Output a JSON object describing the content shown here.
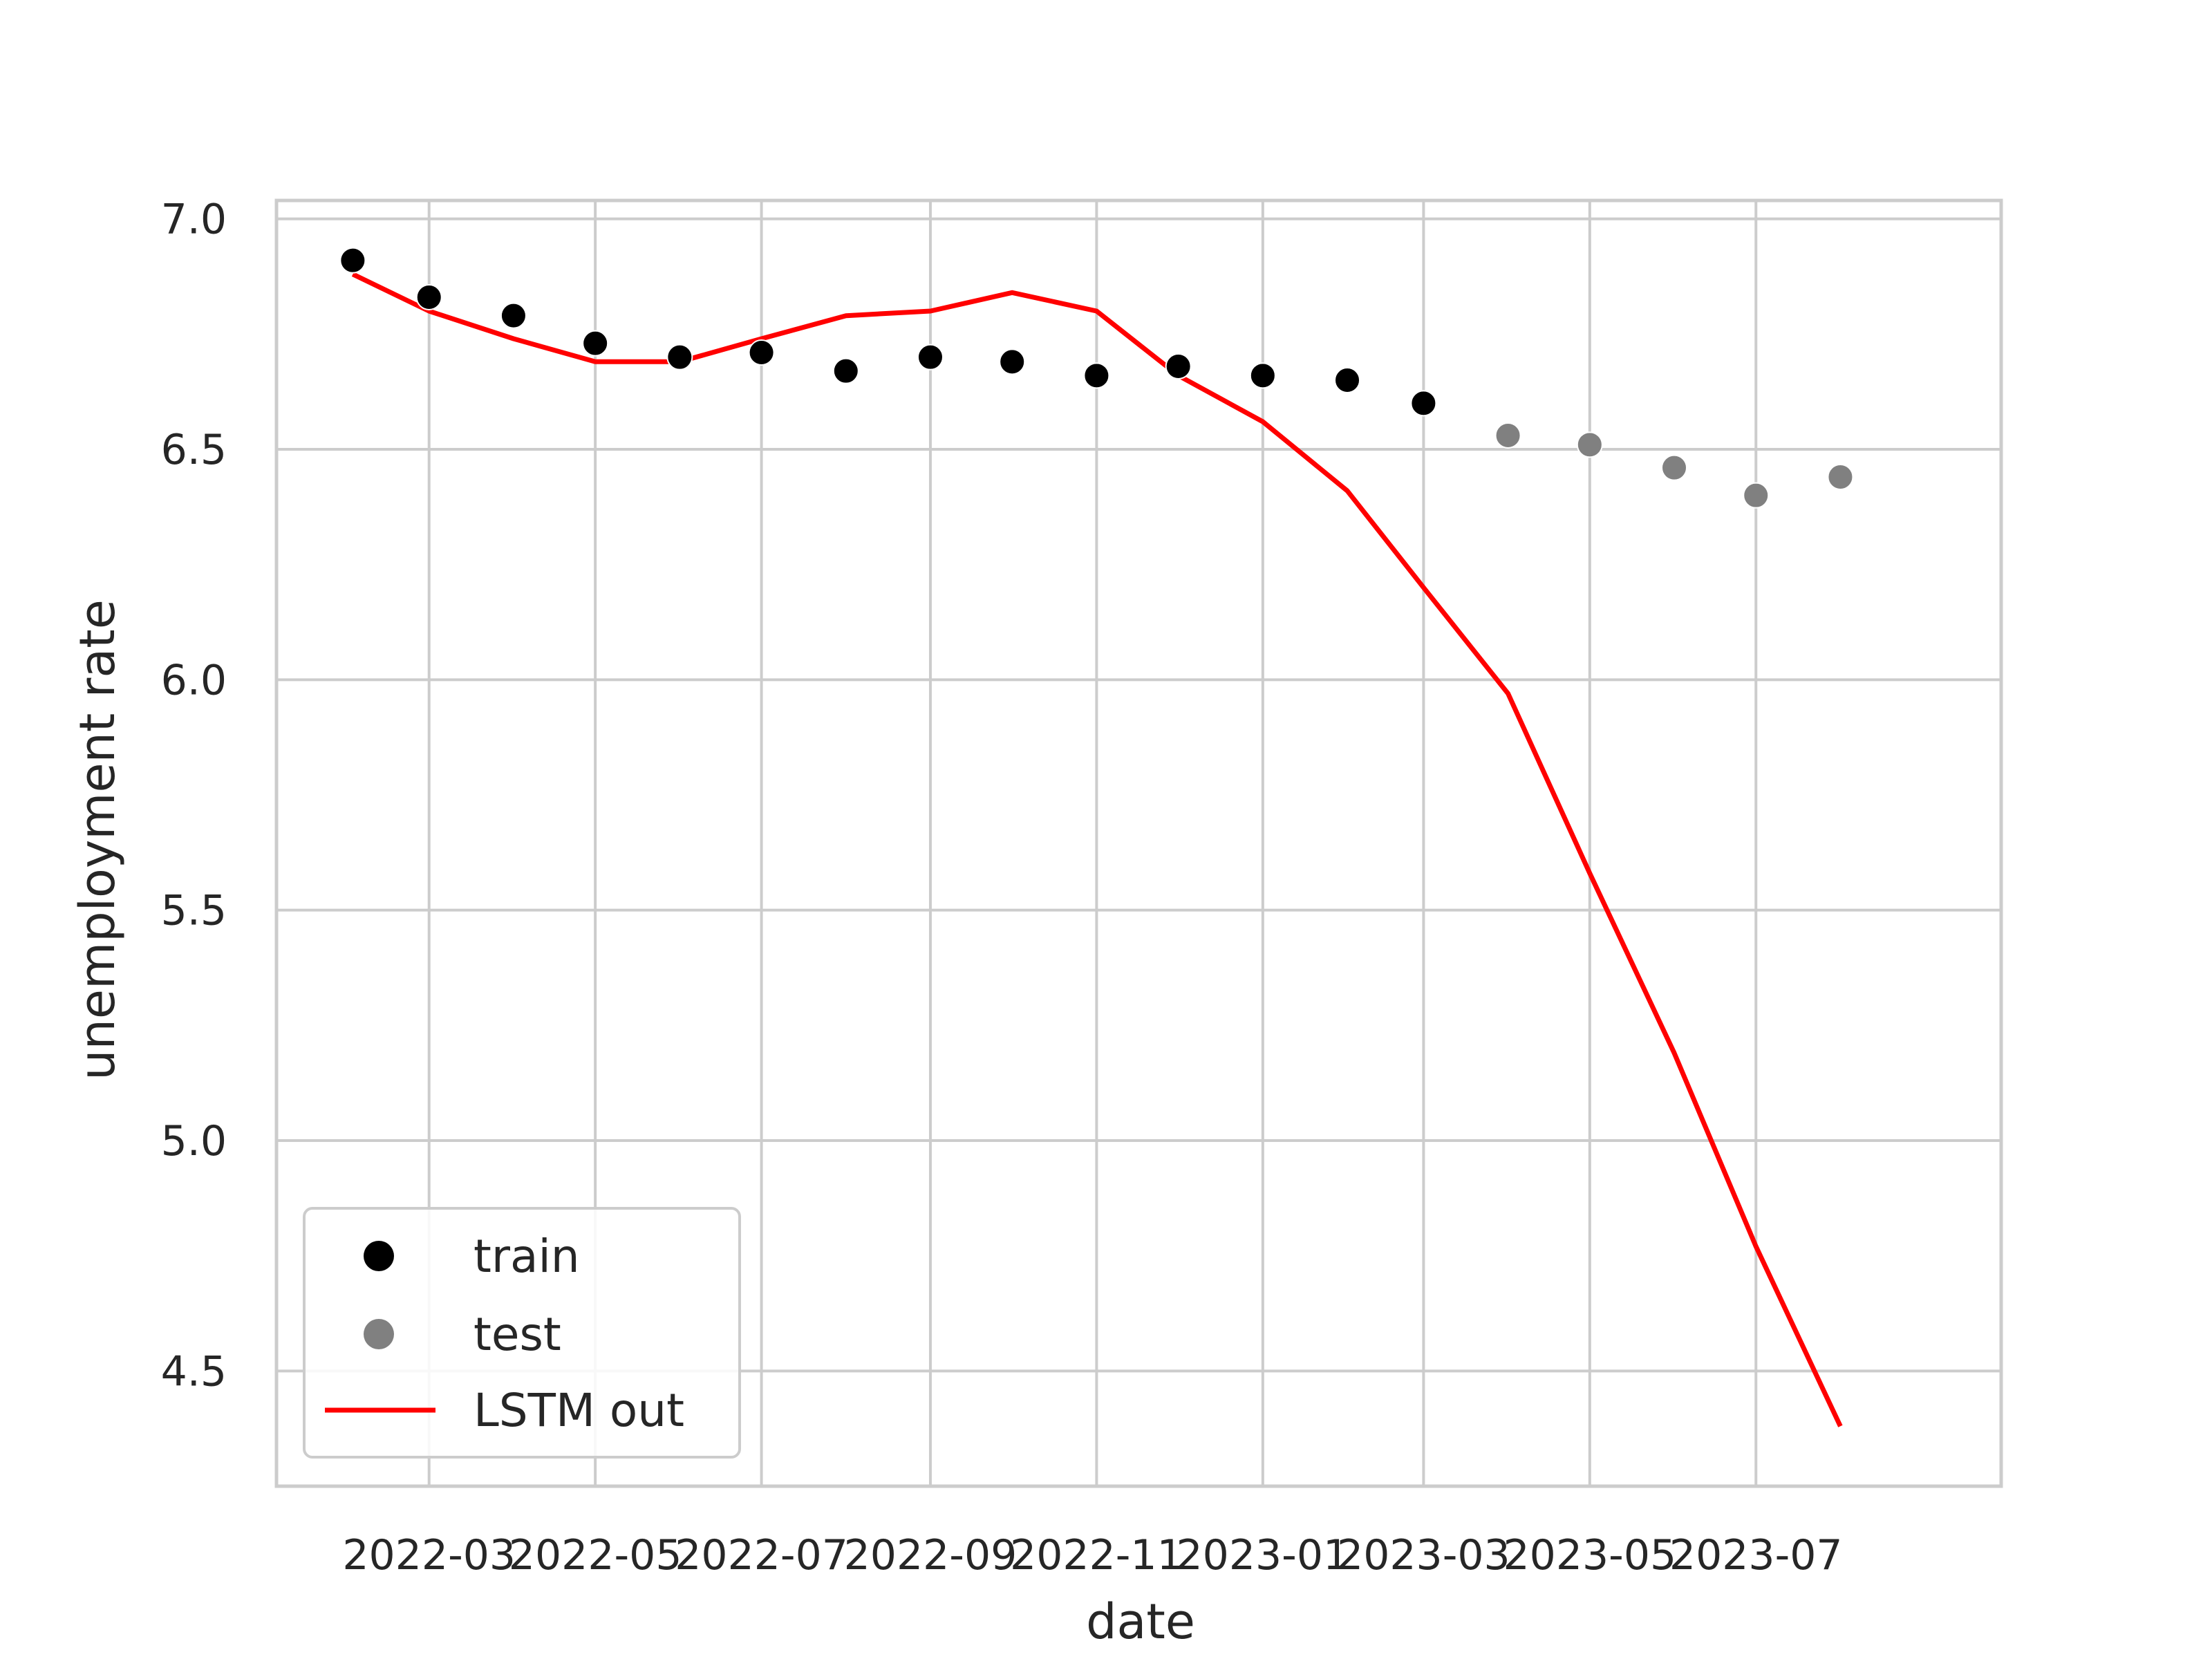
{
  "chart_data": {
    "type": "scatter",
    "xlabel": "date",
    "ylabel": "unemployment rate",
    "x_ticks": [
      "2022-03",
      "2022-05",
      "2022-07",
      "2022-09",
      "2022-11",
      "2023-01",
      "2023-03",
      "2023-05",
      "2023-07"
    ],
    "y_ticks": [
      "4.5",
      "5.0",
      "5.5",
      "6.0",
      "6.5",
      "7.0"
    ],
    "x_range": [
      "2022-01-04",
      "2023-09-29"
    ],
    "ylim": [
      4.25,
      7.04
    ],
    "grid": true,
    "legend_position": "lower-left",
    "series": [
      {
        "name": "train",
        "kind": "scatter",
        "color": "#000000",
        "points": [
          {
            "x": "2022-02-01",
            "y": 6.91
          },
          {
            "x": "2022-03-01",
            "y": 6.83
          },
          {
            "x": "2022-04-01",
            "y": 6.79
          },
          {
            "x": "2022-05-01",
            "y": 6.73
          },
          {
            "x": "2022-06-01",
            "y": 6.7
          },
          {
            "x": "2022-07-01",
            "y": 6.71
          },
          {
            "x": "2022-08-01",
            "y": 6.67
          },
          {
            "x": "2022-09-01",
            "y": 6.7
          },
          {
            "x": "2022-10-01",
            "y": 6.69
          },
          {
            "x": "2022-11-01",
            "y": 6.66
          },
          {
            "x": "2022-12-01",
            "y": 6.68
          },
          {
            "x": "2023-01-01",
            "y": 6.66
          },
          {
            "x": "2023-02-01",
            "y": 6.65
          },
          {
            "x": "2023-03-01",
            "y": 6.6
          }
        ]
      },
      {
        "name": "test",
        "kind": "scatter",
        "color": "#808080",
        "points": [
          {
            "x": "2023-04-01",
            "y": 6.53
          },
          {
            "x": "2023-05-01",
            "y": 6.51
          },
          {
            "x": "2023-06-01",
            "y": 6.46
          },
          {
            "x": "2023-07-01",
            "y": 6.4
          },
          {
            "x": "2023-08-01",
            "y": 6.44
          }
        ]
      },
      {
        "name": "LSTM out",
        "kind": "line",
        "color": "#ff0000",
        "points": [
          {
            "x": "2022-02-01",
            "y": 6.88
          },
          {
            "x": "2022-03-01",
            "y": 6.8
          },
          {
            "x": "2022-04-01",
            "y": 6.74
          },
          {
            "x": "2022-05-01",
            "y": 6.69
          },
          {
            "x": "2022-06-01",
            "y": 6.69
          },
          {
            "x": "2022-07-01",
            "y": 6.74
          },
          {
            "x": "2022-08-01",
            "y": 6.79
          },
          {
            "x": "2022-09-01",
            "y": 6.8
          },
          {
            "x": "2022-10-01",
            "y": 6.84
          },
          {
            "x": "2022-11-01",
            "y": 6.8
          },
          {
            "x": "2022-12-01",
            "y": 6.66
          },
          {
            "x": "2023-01-01",
            "y": 6.56
          },
          {
            "x": "2023-02-01",
            "y": 6.41
          },
          {
            "x": "2023-03-01",
            "y": 6.2
          },
          {
            "x": "2023-04-01",
            "y": 5.97
          },
          {
            "x": "2023-05-01",
            "y": 5.58
          },
          {
            "x": "2023-06-01",
            "y": 5.19
          },
          {
            "x": "2023-07-01",
            "y": 4.77
          },
          {
            "x": "2023-08-01",
            "y": 4.38
          }
        ]
      }
    ]
  }
}
